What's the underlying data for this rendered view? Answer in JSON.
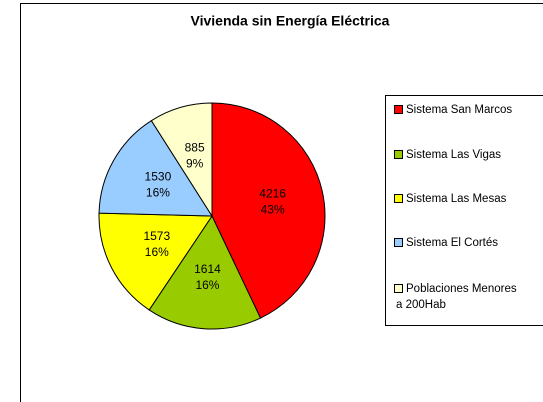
{
  "chart_data": {
    "type": "pie",
    "title": "Vivienda sin Energía Eléctrica",
    "categories": [
      "Sistema San Marcos",
      "Sistema Las Vigas",
      "Sistema Las Mesas",
      "Sistema El Cortés",
      "Poblaciones Menores a 200Hab"
    ],
    "values": [
      4216,
      1614,
      1573,
      1530,
      885
    ],
    "percent_labels": [
      "43%",
      "16%",
      "16%",
      "16%",
      "9%"
    ],
    "colors": [
      "#ff0000",
      "#99cc00",
      "#ffff00",
      "#99ccff",
      "#ffffcc"
    ],
    "legend": "right"
  }
}
